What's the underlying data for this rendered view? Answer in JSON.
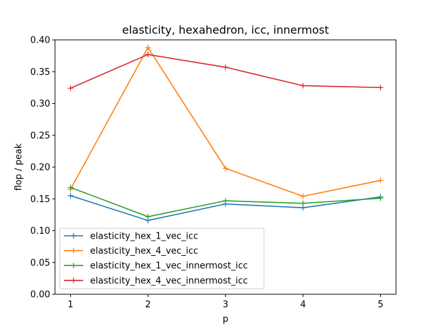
{
  "chart_data": {
    "type": "line",
    "title": "elasticity, hexahedron, icc, innermost",
    "xlabel": "p",
    "ylabel": "flop / peak",
    "x": [
      1,
      2,
      3,
      4,
      5
    ],
    "xticks": [
      "1",
      "2",
      "3",
      "4",
      "5"
    ],
    "xlim": [
      0.8,
      5.2
    ],
    "ylim": [
      0.0,
      0.4
    ],
    "yticks": [
      "0.00",
      "0.05",
      "0.10",
      "0.15",
      "0.20",
      "0.25",
      "0.30",
      "0.35",
      "0.40"
    ],
    "grid": false,
    "legend_position": "lower-left",
    "marker": "plus",
    "series": [
      {
        "name": "elasticity_hex_1_vec_icc",
        "color": "#1f77b4",
        "values": [
          0.155,
          0.116,
          0.142,
          0.136,
          0.153
        ]
      },
      {
        "name": "elasticity_hex_4_vec_icc",
        "color": "#ff7f0e",
        "values": [
          0.165,
          0.388,
          0.198,
          0.154,
          0.179
        ]
      },
      {
        "name": "elasticity_hex_1_vec_innermost_icc",
        "color": "#2ca02c",
        "values": [
          0.168,
          0.122,
          0.147,
          0.143,
          0.151
        ]
      },
      {
        "name": "elasticity_hex_4_vec_innermost_icc",
        "color": "#d62728",
        "values": [
          0.324,
          0.377,
          0.357,
          0.328,
          0.325
        ]
      }
    ]
  }
}
